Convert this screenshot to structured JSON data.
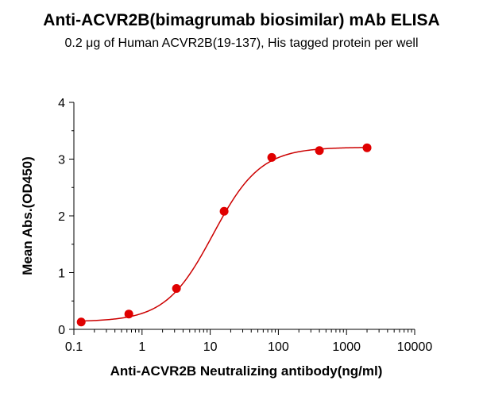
{
  "chart_data": {
    "type": "scatter",
    "title": "Anti-ACVR2B(bimagrumab biosimilar) mAb ELISA",
    "subtitle": "0.2 μg of Human ACVR2B(19-137), His tagged protein per well",
    "xlabel": "Anti-ACVR2B Neutralizing antibody(ng/ml)",
    "ylabel": "Mean Abs.(OD450)",
    "xscale": "log",
    "xlim": [
      0.1,
      10000
    ],
    "ylim": [
      0,
      4
    ],
    "x_ticks": [
      "0.1",
      "1",
      "10",
      "100",
      "1000",
      "10000"
    ],
    "y_ticks": [
      "0",
      "1",
      "2",
      "3",
      "4"
    ],
    "grid": false,
    "marker_color": "#e00000",
    "curve_color": "#cc0000",
    "series": [
      {
        "x": [
          0.128,
          0.64,
          3.2,
          16,
          80,
          400,
          2000
        ],
        "y": [
          0.13,
          0.27,
          0.72,
          2.08,
          3.03,
          3.15,
          3.2
        ],
        "fit": "four-parameter logistic"
      }
    ]
  }
}
